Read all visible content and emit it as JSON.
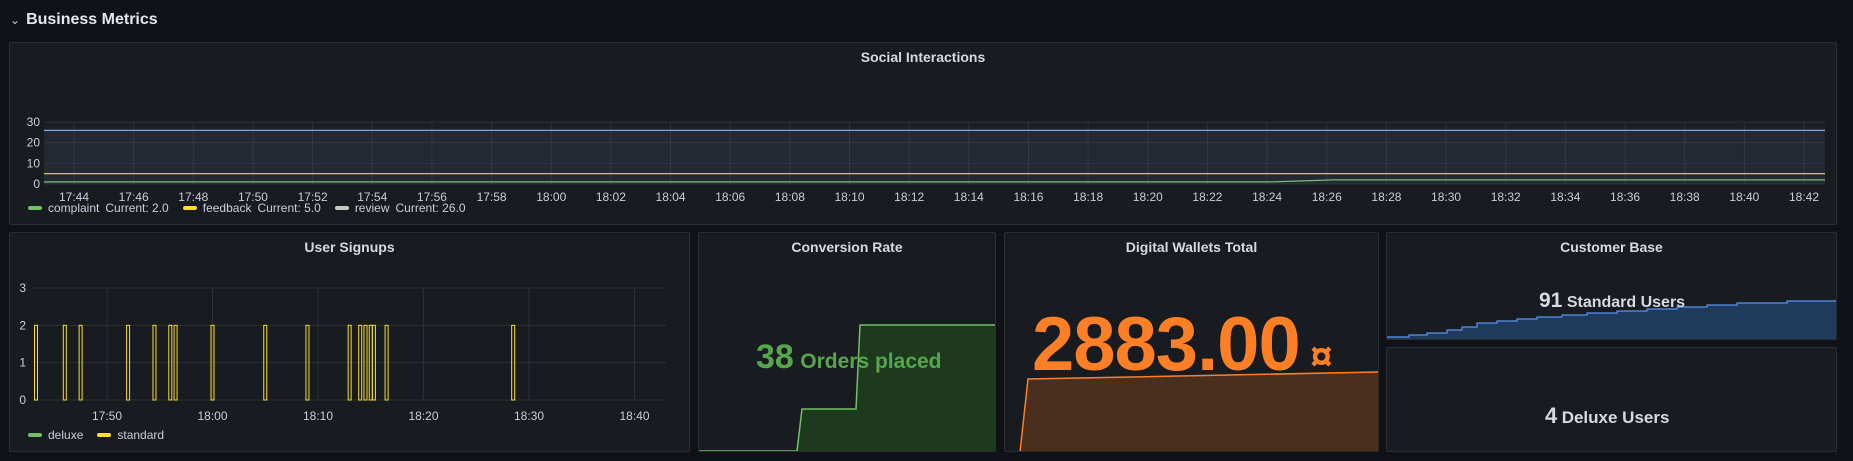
{
  "row": {
    "title": "Business Metrics",
    "chevron_icon": "chevron-down-icon"
  },
  "colors": {
    "green": "#73bf69",
    "yellow": "#fade2a",
    "review": "#8ab8ff",
    "orange": "#ff7f27",
    "dark_green": "#1d3a1f",
    "blue": "#5794f2"
  },
  "social": {
    "title": "Social Interactions",
    "y_ticks": [
      "0",
      "10",
      "20",
      "30"
    ],
    "x_ticks": [
      "17:44",
      "17:46",
      "17:48",
      "17:50",
      "17:52",
      "17:54",
      "17:56",
      "17:58",
      "18:00",
      "18:02",
      "18:04",
      "18:06",
      "18:08",
      "18:10",
      "18:12",
      "18:14",
      "18:16",
      "18:18",
      "18:20",
      "18:22",
      "18:24",
      "18:26",
      "18:28",
      "18:30",
      "18:32",
      "18:34",
      "18:36",
      "18:38",
      "18:40",
      "18:42"
    ],
    "legend": [
      {
        "name": "complaint",
        "current": "Current: 2.0",
        "color": "#73bf69"
      },
      {
        "name": "feedback",
        "current": "Current: 5.0",
        "color": "#fade2a"
      },
      {
        "name": "review",
        "current": "Current: 26.0",
        "color": "#c8c8c8"
      }
    ]
  },
  "signups": {
    "title": "User Signups",
    "y_ticks": [
      "0",
      "1",
      "2",
      "3"
    ],
    "x_ticks": [
      "17:50",
      "18:00",
      "18:10",
      "18:20",
      "18:30",
      "18:40"
    ],
    "legend": [
      {
        "name": "deluxe",
        "color": "#73bf69"
      },
      {
        "name": "standard",
        "color": "#fade2a"
      }
    ]
  },
  "conversion": {
    "title": "Conversion Rate",
    "value": "38",
    "unit": "Orders placed"
  },
  "wallets": {
    "title": "Digital Wallets Total",
    "value": "2883.00",
    "currency_symbol": "¤"
  },
  "customers": {
    "title": "Customer Base",
    "standard_value": "91",
    "standard_label": "Standard Users",
    "deluxe_value": "4",
    "deluxe_label": "Deluxe Users"
  },
  "chart_data": [
    {
      "type": "line",
      "title": "Social Interactions",
      "x": [
        "17:44",
        "17:46",
        "17:48",
        "17:50",
        "17:52",
        "17:54",
        "17:56",
        "17:58",
        "18:00",
        "18:02",
        "18:04",
        "18:06",
        "18:08",
        "18:10",
        "18:12",
        "18:14",
        "18:16",
        "18:18",
        "18:20",
        "18:22",
        "18:24",
        "18:26",
        "18:28",
        "18:30",
        "18:32",
        "18:34",
        "18:36",
        "18:38",
        "18:40",
        "18:42"
      ],
      "ylim": [
        0,
        30
      ],
      "series": [
        {
          "name": "complaint",
          "values": [
            1,
            1,
            1,
            1,
            1,
            1,
            1,
            1,
            1,
            1,
            1,
            1,
            1,
            1,
            1,
            1,
            1,
            1,
            1,
            1,
            1,
            2,
            2,
            2,
            2,
            2,
            2,
            2,
            2,
            2
          ]
        },
        {
          "name": "feedback",
          "values": [
            5,
            5,
            5,
            5,
            5,
            5,
            5,
            5,
            5,
            5,
            5,
            5,
            5,
            5,
            5,
            5,
            5,
            5,
            5,
            5,
            5,
            5,
            5,
            5,
            5,
            5,
            5,
            5,
            5,
            5
          ]
        },
        {
          "name": "review",
          "values": [
            26,
            26,
            26,
            26,
            26,
            26,
            26,
            26,
            26,
            26,
            26,
            26,
            26,
            26,
            26,
            26,
            26,
            26,
            26,
            26,
            26,
            26,
            26,
            26,
            26,
            26,
            26,
            26,
            26,
            26
          ]
        }
      ],
      "legend": "bottom-left",
      "grid": true
    },
    {
      "type": "bar",
      "title": "User Signups",
      "ylim": [
        0,
        3
      ],
      "x_ticks": [
        "17:50",
        "18:00",
        "18:10",
        "18:20",
        "18:30",
        "18:40"
      ],
      "series": [
        {
          "name": "deluxe",
          "events": []
        },
        {
          "name": "standard",
          "events_minutes": [
            -4.0,
            -2.5,
            2.0,
            4.5,
            6.0,
            6.5,
            10.0,
            15.0,
            19.0,
            23.0,
            24.0,
            24.5,
            25.0,
            25.3,
            26.5,
            38.5
          ],
          "value": 2
        }
      ],
      "legend": "bottom-left",
      "grid": true
    }
  ]
}
